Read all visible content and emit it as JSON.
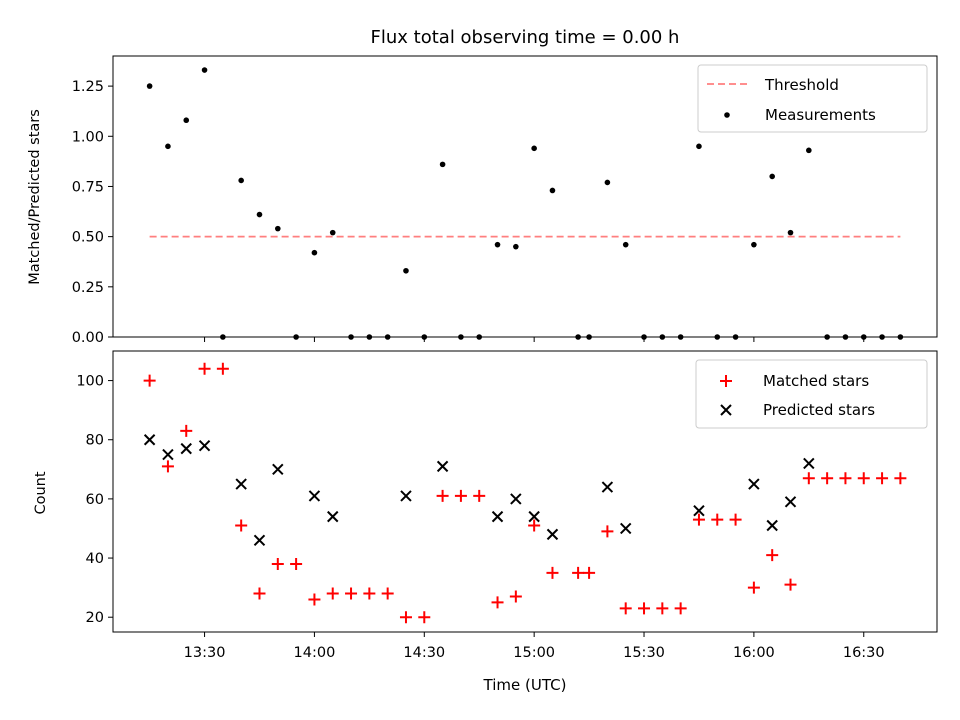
{
  "colors": {
    "threshold": "#ff7f7f",
    "measurements": "#000000",
    "matched": "#ff0000",
    "predicted": "#000000"
  },
  "chart_data": [
    {
      "type": "scatter",
      "title": "Flux total observing time = 0.00 h",
      "xlabel": "",
      "ylabel": "Matched/Predicted stars",
      "ylim": [
        0,
        1.4
      ],
      "xlim": [
        "13:05",
        "16:50"
      ],
      "yticks": [
        "0.00",
        "0.25",
        "0.50",
        "0.75",
        "1.00",
        "1.25"
      ],
      "legend_position": "top-right",
      "threshold": {
        "name": "Threshold",
        "value": 0.5,
        "x_start": "13:15",
        "x_end": "16:40"
      },
      "series": [
        {
          "name": "Measurements",
          "x": [
            "13:15",
            "13:20",
            "13:25",
            "13:30",
            "13:35",
            "13:40",
            "13:45",
            "13:50",
            "13:55",
            "14:00",
            "14:05",
            "14:10",
            "14:15",
            "14:20",
            "14:25",
            "14:30",
            "14:35",
            "14:40",
            "14:45",
            "14:50",
            "14:55",
            "15:00",
            "15:05",
            "15:12",
            "15:15",
            "15:20",
            "15:25",
            "15:30",
            "15:35",
            "15:40",
            "15:45",
            "15:50",
            "15:55",
            "16:00",
            "16:05",
            "16:10",
            "16:15",
            "16:20",
            "16:25",
            "16:30",
            "16:35",
            "16:40"
          ],
          "y": [
            1.25,
            0.95,
            1.08,
            1.33,
            0.0,
            0.78,
            0.61,
            0.54,
            0.0,
            0.42,
            0.52,
            0.0,
            0.0,
            0.0,
            0.33,
            0.0,
            0.86,
            0.0,
            0.0,
            0.46,
            0.45,
            0.94,
            0.73,
            0.0,
            0.0,
            0.77,
            0.46,
            0.0,
            0.0,
            0.0,
            0.95,
            0.0,
            0.0,
            0.46,
            0.8,
            0.52,
            0.93,
            0.0,
            0.0,
            0.0,
            0.0,
            0.0
          ]
        }
      ]
    },
    {
      "type": "scatter",
      "title": "",
      "xlabel": "Time (UTC)",
      "ylabel": "Count",
      "ylim": [
        15,
        110
      ],
      "xlim": [
        "13:05",
        "16:50"
      ],
      "xticks": [
        "13:30",
        "14:00",
        "14:30",
        "15:00",
        "15:30",
        "16:00",
        "16:30"
      ],
      "yticks": [
        "20",
        "40",
        "60",
        "80",
        "100"
      ],
      "legend_position": "top-right",
      "series": [
        {
          "name": "Matched stars",
          "x": [
            "13:15",
            "13:20",
            "13:25",
            "13:30",
            "13:35",
            "13:40",
            "13:45",
            "13:50",
            "13:55",
            "14:00",
            "14:05",
            "14:10",
            "14:15",
            "14:20",
            "14:25",
            "14:30",
            "14:35",
            "14:40",
            "14:45",
            "14:50",
            "14:55",
            "15:00",
            "15:05",
            "15:12",
            "15:15",
            "15:20",
            "15:25",
            "15:30",
            "15:35",
            "15:40",
            "15:45",
            "15:50",
            "15:55",
            "16:00",
            "16:05",
            "16:10",
            "16:15",
            "16:20",
            "16:25",
            "16:30",
            "16:35",
            "16:40"
          ],
          "y": [
            100,
            71,
            83,
            104,
            104,
            51,
            28,
            38,
            38,
            26,
            28,
            28,
            28,
            28,
            20,
            20,
            61,
            61,
            61,
            25,
            27,
            51,
            35,
            35,
            35,
            49,
            23,
            23,
            23,
            23,
            53,
            53,
            53,
            30,
            41,
            31,
            67,
            67,
            67,
            67,
            67,
            67
          ]
        },
        {
          "name": "Predicted stars",
          "x": [
            "13:15",
            "13:20",
            "13:25",
            "13:30",
            "13:40",
            "13:45",
            "13:50",
            "14:00",
            "14:05",
            "14:25",
            "14:35",
            "14:50",
            "14:55",
            "15:00",
            "15:05",
            "15:20",
            "15:25",
            "15:45",
            "16:00",
            "16:05",
            "16:10",
            "16:15"
          ],
          "y": [
            80,
            75,
            77,
            78,
            65,
            46,
            70,
            61,
            54,
            61,
            71,
            54,
            60,
            54,
            48,
            64,
            50,
            56,
            65,
            51,
            59,
            72
          ]
        }
      ]
    }
  ]
}
